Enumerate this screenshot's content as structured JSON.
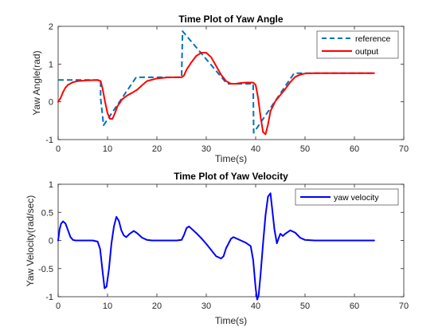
{
  "chart_data": [
    {
      "type": "line",
      "title": "Time Plot of Yaw Angle",
      "xlabel": "Time(s)",
      "ylabel": "Yaw Angle(rad)",
      "xlim": [
        0,
        70
      ],
      "ylim": [
        -1,
        2
      ],
      "xticks": [
        "0",
        "10",
        "20",
        "30",
        "40",
        "50",
        "60",
        "70"
      ],
      "yticks": [
        "-1",
        "0",
        "1",
        "2"
      ],
      "legend_position": "top-right",
      "series": [
        {
          "name": "reference",
          "style": "dashed",
          "color": "#0072BD",
          "x": [
            0,
            8.6,
            8.6,
            9.2,
            15.8,
            16.0,
            25.0,
            25.2,
            34.2,
            34.5,
            39.5,
            39.6,
            47.8,
            48.0,
            64.0
          ],
          "y": [
            0.58,
            0.58,
            0.1,
            -0.62,
            0.65,
            0.65,
            0.65,
            1.87,
            0.48,
            0.48,
            0.48,
            -0.82,
            0.76,
            0.76,
            0.76
          ]
        },
        {
          "name": "output",
          "style": "solid",
          "color": "#FF0000",
          "x": [
            0,
            0.5,
            1,
            1.5,
            2,
            3,
            4,
            5,
            6,
            7,
            8,
            8.6,
            9,
            9.5,
            10,
            10.5,
            11,
            11.5,
            12,
            13,
            14,
            15,
            16,
            17,
            18,
            20,
            22,
            24,
            25,
            25.5,
            26,
            27,
            28,
            29,
            30,
            31,
            32,
            33,
            34,
            35,
            36,
            37,
            38,
            39.5,
            40,
            40.5,
            41,
            41.5,
            42,
            42.5,
            43,
            44,
            45,
            46,
            47,
            48,
            49,
            50,
            52,
            55,
            60,
            64
          ],
          "y": [
            0.0,
            0.1,
            0.26,
            0.38,
            0.45,
            0.52,
            0.55,
            0.56,
            0.57,
            0.575,
            0.575,
            0.55,
            0.35,
            0.0,
            -0.3,
            -0.45,
            -0.45,
            -0.3,
            -0.12,
            0.07,
            0.17,
            0.24,
            0.32,
            0.44,
            0.55,
            0.62,
            0.645,
            0.65,
            0.65,
            0.7,
            0.85,
            1.05,
            1.22,
            1.3,
            1.3,
            1.18,
            0.95,
            0.72,
            0.55,
            0.48,
            0.48,
            0.5,
            0.51,
            0.51,
            0.45,
            0.1,
            -0.4,
            -0.8,
            -0.86,
            -0.6,
            -0.25,
            0.02,
            0.18,
            0.34,
            0.52,
            0.66,
            0.72,
            0.75,
            0.76,
            0.76,
            0.76,
            0.76
          ]
        }
      ]
    },
    {
      "type": "line",
      "title": "Time Plot of Yaw Velocity",
      "xlabel": "Time(s)",
      "ylabel": "Yaw Velocity(rad/sec)",
      "xlim": [
        0,
        70
      ],
      "ylim": [
        -1,
        1
      ],
      "xticks": [
        "0",
        "10",
        "20",
        "30",
        "40",
        "50",
        "60",
        "70"
      ],
      "yticks": [
        "-1",
        "-0.5",
        "0",
        "0.5",
        "1"
      ],
      "legend_position": "top-right",
      "series": [
        {
          "name": "yaw velocity",
          "style": "solid",
          "color": "#0000FF",
          "x": [
            0,
            0.3,
            0.6,
            1.0,
            1.5,
            2.0,
            2.5,
            3.0,
            3.5,
            4,
            5,
            6,
            7,
            8,
            8.5,
            9.0,
            9.4,
            9.8,
            10.3,
            10.8,
            11.3,
            11.8,
            12.3,
            12.8,
            13.3,
            13.8,
            14.5,
            15.3,
            16,
            17,
            18,
            19,
            20,
            22,
            24,
            25,
            25.5,
            26,
            26.5,
            27,
            28,
            29,
            30,
            31,
            32,
            33,
            33.5,
            34,
            35,
            35.5,
            36,
            37,
            38,
            39,
            39.5,
            40.0,
            40.3,
            40.6,
            41.0,
            41.5,
            42.0,
            42.5,
            43.0,
            43.3,
            43.8,
            44.3,
            44.7,
            45.0,
            45.5,
            46,
            47,
            48,
            49,
            50,
            52,
            55,
            60,
            64
          ],
          "y": [
            0,
            0.2,
            0.3,
            0.34,
            0.3,
            0.18,
            0.06,
            0.01,
            0,
            0,
            0,
            0,
            0,
            -0.02,
            -0.15,
            -0.55,
            -0.85,
            -0.82,
            -0.5,
            -0.05,
            0.25,
            0.42,
            0.35,
            0.18,
            0.09,
            0.06,
            0.12,
            0.17,
            0.13,
            0.05,
            0.01,
            0,
            0,
            0,
            0,
            0.01,
            0.1,
            0.22,
            0.25,
            0.21,
            0.13,
            0.04,
            -0.06,
            -0.17,
            -0.28,
            -0.32,
            -0.28,
            -0.14,
            0.03,
            0.06,
            0.04,
            0,
            -0.04,
            -0.1,
            -0.35,
            -0.85,
            -1.05,
            -0.98,
            -0.6,
            -0.05,
            0.45,
            0.78,
            0.84,
            0.6,
            0.2,
            -0.05,
            0.05,
            0.12,
            0.08,
            0.12,
            0.18,
            0.14,
            0.05,
            0.01,
            0,
            0,
            0,
            0
          ]
        }
      ]
    }
  ]
}
